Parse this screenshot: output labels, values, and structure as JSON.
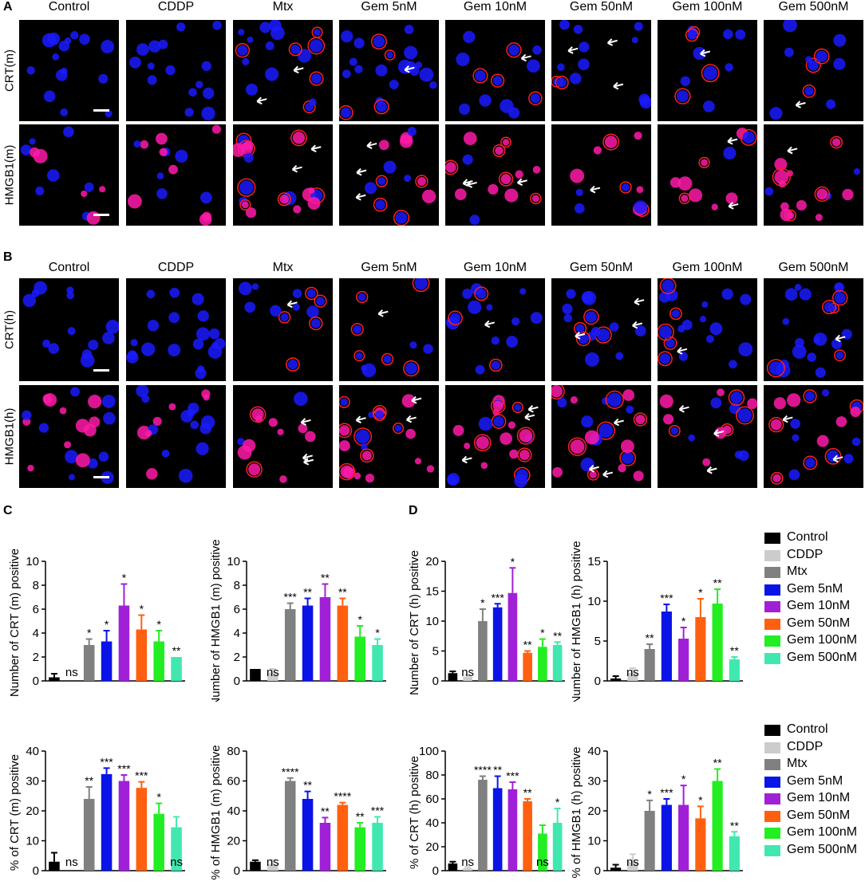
{
  "panels": {
    "A": {
      "letter": "A",
      "columns": [
        "Control",
        "CDDP",
        "Mtx",
        "Gem 5nM",
        "Gem 10nM",
        "Gem 50nM",
        "Gem 100nM",
        "Gem 500nM"
      ],
      "rows": [
        "CRT(m)",
        "HMGB1(m)"
      ]
    },
    "B": {
      "letter": "B",
      "columns": [
        "Control",
        "CDDP",
        "Mtx",
        "Gem 5nM",
        "Gem 10nM",
        "Gem 50nM",
        "Gem 100nM",
        "Gem 500nM"
      ],
      "rows": [
        "CRT(h)",
        "HMGB1(h)"
      ]
    },
    "C": {
      "letter": "C"
    },
    "D": {
      "letter": "D"
    }
  },
  "colors": {
    "Control": "#000000",
    "CDDP": "#cccccc",
    "Mtx": "#808080",
    "Gem 5nM": "#0a14e6",
    "Gem 10nM": "#a020d8",
    "Gem 50nM": "#ff6010",
    "Gem 100nM": "#22ee22",
    "Gem 500nM": "#40e8b0"
  },
  "legend": {
    "entries": [
      "Control",
      "CDDP",
      "Mtx",
      "Gem 5nM",
      "Gem 10nM",
      "Gem 50nM",
      "Gem 100nM",
      "Gem 500nM"
    ]
  },
  "chart_data": [
    {
      "type": "bar",
      "panel": "C",
      "categories": [
        "Control",
        "CDDP",
        "Mtx",
        "Gem 5nM",
        "Gem 10nM",
        "Gem 50nM",
        "Gem 100nM",
        "Gem 500nM"
      ],
      "values": [
        0.3,
        0,
        3.0,
        3.3,
        6.3,
        4.3,
        3.3,
        2.0
      ],
      "errors": [
        0.3,
        0,
        0.5,
        0.9,
        1.8,
        1.2,
        0.9,
        0
      ],
      "sig": [
        "",
        "ns",
        "*",
        "*",
        "*",
        "*",
        "*",
        "**"
      ],
      "ylabel": "Number of CRT (m) positive",
      "ylim": [
        0,
        10
      ],
      "yticks": [
        0,
        2,
        4,
        6,
        8,
        10
      ]
    },
    {
      "type": "bar",
      "panel": "C",
      "categories": [
        "Control",
        "CDDP",
        "Mtx",
        "Gem 5nM",
        "Gem 10nM",
        "Gem 50nM",
        "Gem 100nM",
        "Gem 500nM"
      ],
      "values": [
        1.0,
        0.7,
        6.0,
        6.3,
        7.0,
        6.3,
        3.7,
        3.0
      ],
      "errors": [
        0,
        0.3,
        0.5,
        0.6,
        1.1,
        0.6,
        0.9,
        0.5
      ],
      "sig": [
        "",
        "ns",
        "***",
        "**",
        "**",
        "**",
        "*",
        "*"
      ],
      "ylabel": "Number of HMGB1 (m) positive",
      "ylim": [
        0,
        10
      ],
      "yticks": [
        0,
        2,
        4,
        6,
        8,
        10
      ]
    },
    {
      "type": "bar",
      "panel": "D",
      "categories": [
        "Control",
        "CDDP",
        "Mtx",
        "Gem 5nM",
        "Gem 10nM",
        "Gem 50nM",
        "Gem 100nM",
        "Gem 500nM"
      ],
      "values": [
        1.3,
        0.7,
        10.0,
        12.3,
        14.7,
        4.7,
        5.7,
        6.0
      ],
      "errors": [
        0.3,
        0.3,
        2.0,
        0.6,
        4.2,
        0.3,
        1.3,
        0.5
      ],
      "sig": [
        "",
        "ns",
        "*",
        "***",
        "*",
        "**",
        "*",
        "**"
      ],
      "ylabel": "Number of CRT (h) positive",
      "ylim": [
        0,
        20
      ],
      "yticks": [
        0,
        5,
        10,
        15,
        20
      ]
    },
    {
      "type": "bar",
      "panel": "D",
      "categories": [
        "Control",
        "CDDP",
        "Mtx",
        "Gem 5nM",
        "Gem 10nM",
        "Gem 50nM",
        "Gem 100nM",
        "Gem 500nM"
      ],
      "values": [
        0.3,
        1.0,
        4.0,
        8.7,
        5.3,
        8.0,
        9.7,
        2.7
      ],
      "errors": [
        0.3,
        0.6,
        0.6,
        0.9,
        1.4,
        2.3,
        1.8,
        0.3
      ],
      "sig": [
        "",
        "ns",
        "**",
        "***",
        "*",
        "*",
        "**",
        "**"
      ],
      "ylabel": "Number of HMGB1 (h) positive",
      "ylim": [
        0,
        15
      ],
      "yticks": [
        0,
        5,
        10,
        15
      ]
    },
    {
      "type": "bar",
      "panel": "C",
      "categories": [
        "Control",
        "CDDP",
        "Mtx",
        "Gem 5nM",
        "Gem 10nM",
        "Gem 50nM",
        "Gem 100nM",
        "Gem 500nM"
      ],
      "values": [
        3.0,
        0,
        24.0,
        32.3,
        30.0,
        27.7,
        19.0,
        14.5
      ],
      "errors": [
        3.0,
        0,
        4.0,
        2.0,
        2.0,
        2.0,
        3.5,
        3.5
      ],
      "sig": [
        "",
        "ns",
        "**",
        "***",
        "***",
        "***",
        "*",
        "ns"
      ],
      "ylabel": "% of CRT (m) positive",
      "ylim": [
        0,
        40
      ],
      "yticks": [
        0,
        10,
        20,
        30,
        40
      ]
    },
    {
      "type": "bar",
      "panel": "C",
      "categories": [
        "Control",
        "CDDP",
        "Mtx",
        "Gem 5nM",
        "Gem 10nM",
        "Gem 50nM",
        "Gem 100nM",
        "Gem 500nM"
      ],
      "values": [
        6.0,
        4.5,
        60.0,
        48.0,
        32.0,
        44.0,
        29.0,
        32.0
      ],
      "errors": [
        1.0,
        2.5,
        2.0,
        5.0,
        3.5,
        1.5,
        3.0,
        4.0
      ],
      "sig": [
        "",
        "ns",
        "****",
        "**",
        "**",
        "****",
        "**",
        "***"
      ],
      "ylabel": "% of HMGB1 (m) positive",
      "ylim": [
        0,
        80
      ],
      "yticks": [
        0,
        20,
        40,
        60,
        80
      ]
    },
    {
      "type": "bar",
      "panel": "D",
      "categories": [
        "Control",
        "CDDP",
        "Mtx",
        "Gem 5nM",
        "Gem 10nM",
        "Gem 50nM",
        "Gem 100nM",
        "Gem 500nM"
      ],
      "values": [
        6.0,
        2.0,
        76.0,
        69.0,
        68.0,
        58.0,
        31.0,
        40.0
      ],
      "errors": [
        1.5,
        1.0,
        3.0,
        10.0,
        6.0,
        2.0,
        7.0,
        12.0
      ],
      "sig": [
        "",
        "ns",
        "****",
        "**",
        "***",
        "**",
        "ns",
        "*"
      ],
      "ylabel": "% of CRT (h) positive",
      "ylim": [
        0,
        100
      ],
      "yticks": [
        0,
        20,
        40,
        60,
        80,
        100
      ]
    },
    {
      "type": "bar",
      "panel": "D",
      "categories": [
        "Control",
        "CDDP",
        "Mtx",
        "Gem 5nM",
        "Gem 10nM",
        "Gem 50nM",
        "Gem 100nM",
        "Gem 500nM"
      ],
      "values": [
        1.0,
        3.0,
        20.0,
        22.0,
        22.0,
        17.5,
        30.0,
        11.5
      ],
      "errors": [
        1.0,
        2.5,
        3.5,
        2.0,
        6.5,
        4.0,
        4.0,
        1.5
      ],
      "sig": [
        "",
        "ns",
        "*",
        "***",
        "*",
        "*",
        "**",
        "**"
      ],
      "ylabel": "% of HMGB1 (h) positive",
      "ylim": [
        0,
        40
      ],
      "yticks": [
        0,
        10,
        20,
        30,
        40
      ]
    }
  ]
}
